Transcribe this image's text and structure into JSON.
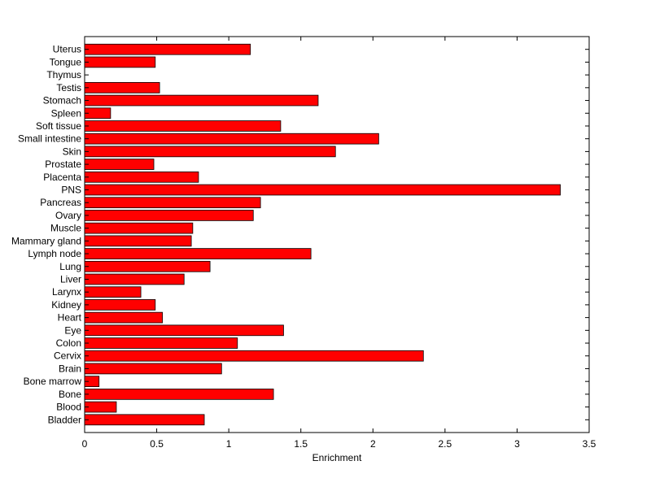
{
  "chart_data": {
    "type": "bar",
    "orientation": "horizontal",
    "categories": [
      "Uterus",
      "Tongue",
      "Thymus",
      "Testis",
      "Stomach",
      "Spleen",
      "Soft tissue",
      "Small intestine",
      "Skin",
      "Prostate",
      "Placenta",
      "PNS",
      "Pancreas",
      "Ovary",
      "Muscle",
      "Mammary gland",
      "Lymph node",
      "Lung",
      "Liver",
      "Larynx",
      "Kidney",
      "Heart",
      "Eye",
      "Colon",
      "Cervix",
      "Brain",
      "Bone marrow",
      "Bone",
      "Blood",
      "Bladder"
    ],
    "values": [
      1.15,
      0.49,
      0.0,
      0.52,
      1.62,
      0.18,
      1.36,
      2.04,
      1.74,
      0.48,
      0.79,
      3.3,
      1.22,
      1.17,
      0.75,
      0.74,
      1.57,
      0.87,
      0.69,
      0.39,
      0.49,
      0.54,
      1.38,
      1.06,
      2.35,
      0.95,
      0.1,
      1.31,
      0.22,
      0.83
    ],
    "xlabel": "Enrichment",
    "ylabel": "",
    "title": "",
    "xlim": [
      0,
      3.5
    ],
    "xticks": [
      "0",
      "0.5",
      "1",
      "1.5",
      "2",
      "2.5",
      "3",
      "3.5"
    ],
    "grid": false,
    "bar_color": "#ff0000",
    "edge_color": "#000000"
  }
}
